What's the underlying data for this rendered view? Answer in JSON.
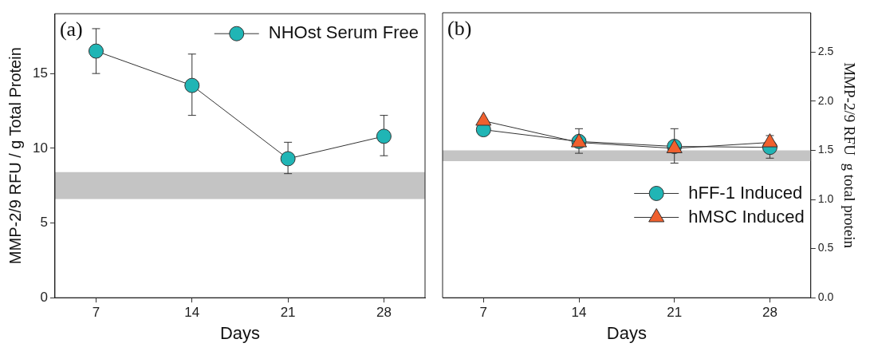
{
  "chart_data": [
    {
      "type": "line",
      "xlabel": "Days",
      "ylabel": "MMP-2/9 RFU / g Total Protein",
      "annotations": [
        "(a)"
      ],
      "x": [
        7,
        14,
        21,
        28
      ],
      "xlim": [
        4,
        31
      ],
      "xticks": [
        7,
        14,
        21,
        28
      ],
      "ylim": [
        0,
        19
      ],
      "yticks": [
        0,
        5,
        10,
        15
      ],
      "grid": false,
      "legend": "top right",
      "series": [
        {
          "name": "NHOst Serum Free",
          "color": "#20b5b5",
          "marker": "circle",
          "values": [
            16.5,
            14.2,
            9.3,
            10.8
          ],
          "errors": [
            [
              15,
              18
            ],
            [
              12.2,
              16.3
            ],
            [
              8.3,
              10.4
            ],
            [
              9.5,
              12.2
            ]
          ]
        }
      ],
      "bands": [
        {
          "axis": "y",
          "from": 6.6,
          "to": 8.4,
          "color": "#c4c4c4"
        }
      ]
    },
    {
      "type": "line",
      "xlabel": "Days",
      "y2label": "MMP-2/9 RFU  g total protein",
      "annotations": [
        "(b)"
      ],
      "x": [
        7,
        14,
        21,
        28
      ],
      "xlim": [
        4,
        31
      ],
      "xticks": [
        7,
        14,
        21,
        28
      ],
      "y2lim": [
        0,
        2.9
      ],
      "y2ticks": [
        {
          "value": 0,
          "label": "0.0"
        },
        {
          "value": 0.5,
          "label": "0.5"
        },
        {
          "value": 1,
          "label": "1.0"
        },
        {
          "value": 1.5,
          "label": "1.5"
        },
        {
          "value": 2,
          "label": "2.0"
        },
        {
          "value": 2.5,
          "label": "2.5"
        }
      ],
      "grid": false,
      "legend": "bottom right",
      "series": [
        {
          "name": "hFF-1 Induced",
          "color": "#20b5b5",
          "marker": "circle",
          "axis": "y2",
          "values": [
            1.71,
            1.59,
            1.54,
            1.53
          ],
          "errors": [
            null,
            [
              1.47,
              1.72
            ],
            [
              1.37,
              1.72
            ],
            [
              1.42,
              1.65
            ]
          ]
        },
        {
          "name": "hMSC Induced",
          "color": "#f0602e",
          "marker": "triangle",
          "axis": "y2",
          "values": [
            1.8,
            1.58,
            1.52,
            1.58
          ]
        }
      ],
      "bands": [
        {
          "axis": "y2",
          "from": 1.39,
          "to": 1.5,
          "color": "#c4c4c4"
        }
      ]
    }
  ]
}
